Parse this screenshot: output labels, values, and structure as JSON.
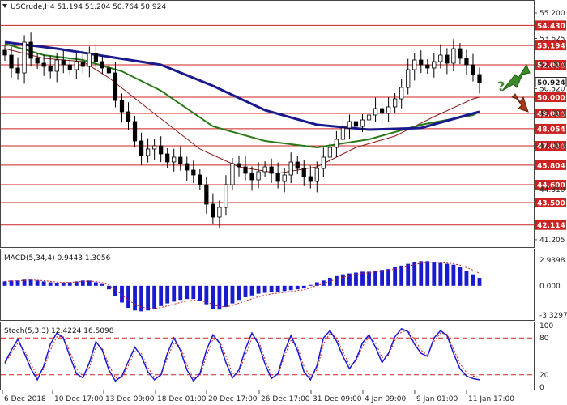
{
  "chart_data": {
    "type": "candlestick",
    "symbol": "USCrude",
    "timeframe": "H4",
    "ohlc_text": "51.194 51.204 50.764 50.924",
    "price_axis": {
      "range": [
        41.2,
        55.3
      ],
      "ticks": [
        "55.200",
        "53.625",
        "52.000",
        "50.520",
        "49.000",
        "47.000",
        "44.310",
        "41.205"
      ],
      "tick_values": [
        55.2,
        53.625,
        52.0,
        50.52,
        49.0,
        47.0,
        44.31,
        41.205
      ]
    },
    "levels": [
      {
        "label": "54.430",
        "value": 54.43
      },
      {
        "label": "53.194",
        "value": 53.194
      },
      {
        "label": "52.000",
        "value": 52.0
      },
      {
        "label": "50.000",
        "value": 50.0
      },
      {
        "label": "49.000",
        "value": 49.0
      },
      {
        "label": "48.054",
        "value": 48.054
      },
      {
        "label": "47.000",
        "value": 47.0
      },
      {
        "label": "45.804",
        "value": 45.804
      },
      {
        "label": "44.600",
        "value": 44.6
      },
      {
        "label": "43.500",
        "value": 43.5
      },
      {
        "label": "42.114",
        "value": 42.114
      }
    ],
    "current_price": {
      "label": "50.924",
      "value": 50.924
    },
    "x_labels": [
      "6 Dec 2018",
      "10 Dec 17:00",
      "13 Dec 09:00",
      "18 Dec 01:00",
      "20 Dec 17:00",
      "26 Dec 17:00",
      "31 Dec 09:00",
      "4 Jan 09:00",
      "9 Jan 01:00",
      "11 Jan 17:00"
    ],
    "closes": [
      52.6,
      51.8,
      51.5,
      53.4,
      52.4,
      52.1,
      51.9,
      51.6,
      52.3,
      52.0,
      51.7,
      52.2,
      51.9,
      52.7,
      52.2,
      51.8,
      51.5,
      49.8,
      49.1,
      48.5,
      47.3,
      46.4,
      46.8,
      47.0,
      46.5,
      46.0,
      46.3,
      45.9,
      45.5,
      45.2,
      44.6,
      43.4,
      42.6,
      43.2,
      44.6,
      45.9,
      45.7,
      45.3,
      44.9,
      45.4,
      45.7,
      45.3,
      44.8,
      45.2,
      46.0,
      45.6,
      45.1,
      44.8,
      45.6,
      46.3,
      46.9,
      47.4,
      48.1,
      48.5,
      48.2,
      48.6,
      48.9,
      49.3,
      49.0,
      49.4,
      49.9,
      50.6,
      51.7,
      52.3,
      52.0,
      51.8,
      52.2,
      52.6,
      52.1,
      53.0,
      52.4,
      52.0,
      51.4,
      50.9
    ],
    "ma_blue": [
      [
        0,
        53.4
      ],
      [
        8,
        53.0
      ],
      [
        16,
        52.5
      ],
      [
        24,
        52.0
      ],
      [
        32,
        50.7
      ],
      [
        40,
        49.2
      ],
      [
        48,
        48.3
      ],
      [
        56,
        48.0
      ],
      [
        64,
        48.1
      ],
      [
        72,
        49.0
      ],
      [
        73,
        49.1
      ]
    ],
    "ma_green": [
      [
        0,
        53.3
      ],
      [
        6,
        52.6
      ],
      [
        12,
        52.3
      ],
      [
        18,
        51.6
      ],
      [
        24,
        50.4
      ],
      [
        32,
        48.2
      ],
      [
        40,
        47.3
      ],
      [
        48,
        46.9
      ],
      [
        56,
        47.4
      ],
      [
        64,
        48.3
      ],
      [
        72,
        48.9
      ],
      [
        73,
        49.1
      ]
    ],
    "ma_red": [
      [
        0,
        53.0
      ],
      [
        6,
        52.4
      ],
      [
        12,
        52.2
      ],
      [
        16,
        51.2
      ],
      [
        22,
        49.3
      ],
      [
        30,
        46.8
      ],
      [
        36,
        45.7
      ],
      [
        42,
        45.3
      ],
      [
        48,
        45.7
      ],
      [
        54,
        46.9
      ],
      [
        60,
        47.6
      ],
      [
        66,
        48.8
      ],
      [
        72,
        49.9
      ],
      [
        73,
        50.0
      ]
    ],
    "macd": {
      "label": "MACD(5,34,4) 0.9443 1.3056",
      "ticks": [
        "2.9398",
        "0.000",
        "-3.3297"
      ],
      "range": [
        -3.6,
        3.2
      ],
      "histogram": [
        0.5,
        0.6,
        0.6,
        0.7,
        0.7,
        0.6,
        0.5,
        0.4,
        0.3,
        0.3,
        0.4,
        0.5,
        0.6,
        0.6,
        0.4,
        0.2,
        -0.4,
        -1.2,
        -1.9,
        -2.5,
        -2.8,
        -2.9,
        -2.8,
        -2.6,
        -2.3,
        -2.0,
        -1.8,
        -1.6,
        -1.5,
        -1.5,
        -1.7,
        -2.1,
        -2.6,
        -2.7,
        -2.4,
        -2.0,
        -1.6,
        -1.3,
        -1.1,
        -0.9,
        -0.8,
        -0.7,
        -0.7,
        -0.6,
        -0.5,
        -0.4,
        -0.3,
        0.1,
        0.4,
        0.6,
        0.9,
        1.1,
        1.3,
        1.4,
        1.5,
        1.6,
        1.6,
        1.7,
        1.8,
        1.9,
        2.1,
        2.3,
        2.5,
        2.7,
        2.8,
        2.8,
        2.7,
        2.6,
        2.5,
        2.4,
        2.1,
        1.7,
        1.3,
        0.9
      ],
      "signal_color": "#cc2222",
      "bar_color": "#1a1ad0"
    },
    "stoch": {
      "label": "Stoch(5,3,3) 12.4224 16.5098",
      "ticks": [
        "100",
        "80",
        "20",
        "0"
      ],
      "levels": [
        80,
        20
      ],
      "k": [
        40,
        60,
        78,
        55,
        30,
        12,
        35,
        70,
        88,
        80,
        50,
        22,
        15,
        40,
        74,
        60,
        28,
        10,
        18,
        42,
        65,
        50,
        25,
        12,
        20,
        55,
        80,
        60,
        28,
        10,
        22,
        60,
        85,
        72,
        40,
        15,
        28,
        62,
        88,
        70,
        38,
        14,
        22,
        58,
        84,
        60,
        25,
        12,
        35,
        80,
        92,
        75,
        50,
        30,
        45,
        72,
        85,
        65,
        40,
        55,
        82,
        95,
        90,
        70,
        55,
        50,
        80,
        92,
        84,
        55,
        30,
        18,
        14,
        12
      ],
      "d": [
        38,
        55,
        72,
        60,
        38,
        18,
        30,
        60,
        82,
        82,
        58,
        30,
        18,
        32,
        65,
        63,
        36,
        15,
        15,
        35,
        58,
        55,
        32,
        16,
        18,
        48,
        72,
        66,
        36,
        14,
        18,
        50,
        78,
        76,
        50,
        22,
        24,
        52,
        80,
        76,
        46,
        20,
        20,
        50,
        76,
        66,
        34,
        16,
        28,
        70,
        88,
        80,
        58,
        36,
        42,
        66,
        82,
        72,
        48,
        52,
        76,
        90,
        92,
        78,
        60,
        52,
        74,
        88,
        86,
        62,
        38,
        24,
        18,
        16
      ],
      "k_color": "#1a1ad0",
      "d_color": "#cc2222"
    },
    "colors": {
      "levels": "#cc2222",
      "candle_up": "#ffffff",
      "candle_down": "#000000",
      "ma_blue": "#1a1a8c",
      "ma_green": "#2a7a1a",
      "ma_red": "#8b1a1a",
      "arrow_up": "#3a8a2a",
      "arrow_down": "#a03a1a"
    }
  }
}
